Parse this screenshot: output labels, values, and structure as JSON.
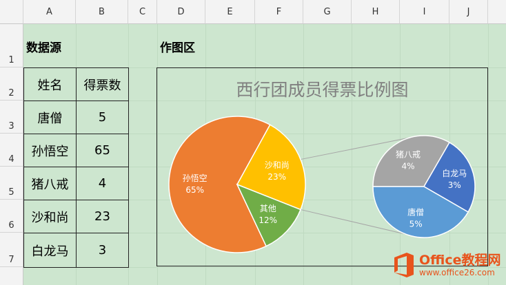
{
  "sheet": {
    "columns": [
      "A",
      "B",
      "C",
      "D",
      "E",
      "F",
      "G",
      "H",
      "I",
      "J"
    ],
    "rows": [
      "1",
      "2",
      "3",
      "4",
      "5",
      "6",
      "7"
    ]
  },
  "labels": {
    "data_source": "数据源",
    "plot_area": "作图区"
  },
  "table": {
    "headers": [
      "姓名",
      "得票数"
    ],
    "rows": [
      {
        "name": "唐僧",
        "votes": "5"
      },
      {
        "name": "孙悟空",
        "votes": "65"
      },
      {
        "name": "猪八戒",
        "votes": "4"
      },
      {
        "name": "沙和尚",
        "votes": "23"
      },
      {
        "name": "白龙马",
        "votes": "3"
      }
    ]
  },
  "chart_data": {
    "type": "pie",
    "subtype": "pie-of-pie",
    "title": "西行团成员得票比例图",
    "main_pie": [
      {
        "label": "孙悟空",
        "value": 65,
        "percent": "65%",
        "color": "#ed7d31"
      },
      {
        "label": "沙和尚",
        "value": 23,
        "percent": "23%",
        "color": "#ffc000"
      },
      {
        "label": "其他",
        "value": 12,
        "percent": "12%",
        "color": "#70ad47"
      }
    ],
    "secondary_pie": [
      {
        "label": "猪八戒",
        "value": 4,
        "percent": "4%",
        "color": "#a5a5a5"
      },
      {
        "label": "白龙马",
        "value": 3,
        "percent": "3%",
        "color": "#4472c4"
      },
      {
        "label": "唐僧",
        "value": 5,
        "percent": "5%",
        "color": "#5b9bd5"
      }
    ]
  },
  "watermark": {
    "brand": "Office教程网",
    "url": "www.office26.com",
    "color": "#e8541c"
  }
}
